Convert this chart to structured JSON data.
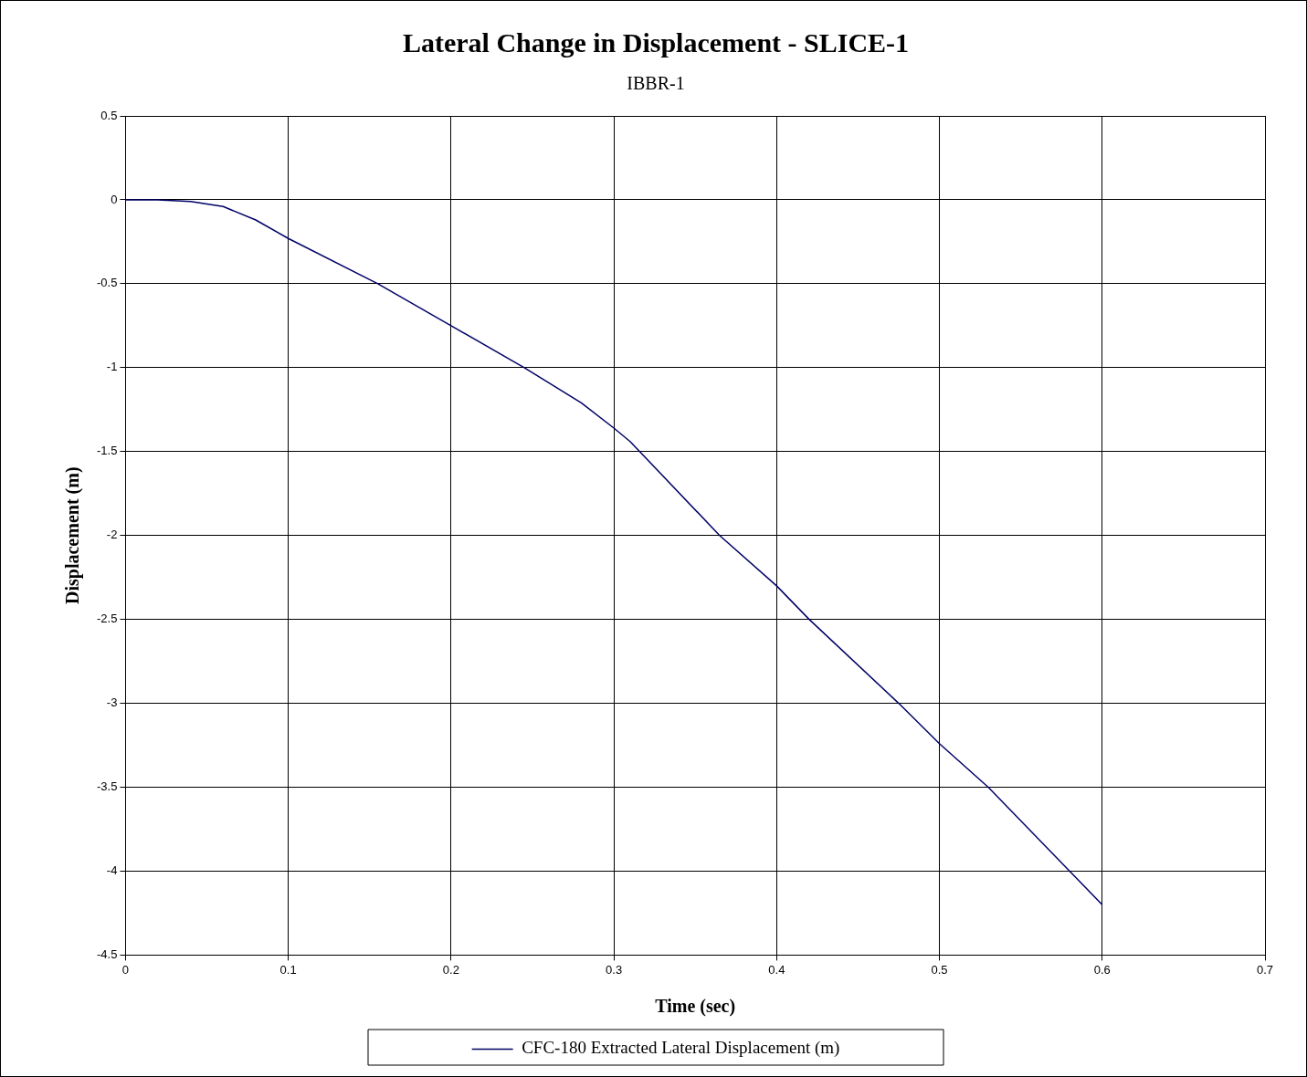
{
  "chart_data": {
    "type": "line",
    "title": "Lateral Change in Displacement - SLICE-1",
    "subtitle": "IBBR-1",
    "xlabel": "Time (sec)",
    "ylabel": "Displacement (m)",
    "series": [
      {
        "name": "CFC-180 Extracted Lateral Displacement (m)",
        "color": "#000066",
        "x": [
          0,
          0.02,
          0.04,
          0.06,
          0.08,
          0.1,
          0.155,
          0.2,
          0.245,
          0.28,
          0.3,
          0.31,
          0.365,
          0.4,
          0.42,
          0.475,
          0.5,
          0.53,
          0.6
        ],
        "values": [
          0,
          0,
          -0.01,
          -0.04,
          -0.12,
          -0.23,
          -0.5,
          -0.75,
          -1.0,
          -1.21,
          -1.36,
          -1.44,
          -2.0,
          -2.3,
          -2.5,
          -3.0,
          -3.24,
          -3.5,
          -4.2
        ]
      }
    ],
    "xlim": [
      0,
      0.7
    ],
    "xticks": [
      0,
      0.1,
      0.2,
      0.3,
      0.4,
      0.5,
      0.6,
      0.7
    ],
    "ylim": [
      -4.5,
      0.5
    ],
    "yticks": [
      -4.5,
      -4,
      -3.5,
      -3,
      -2.5,
      -2,
      -1.5,
      -1,
      -0.5,
      0,
      0.5
    ],
    "grid": true,
    "legend": "bottom",
    "marker": "none",
    "line_style": "solid"
  }
}
